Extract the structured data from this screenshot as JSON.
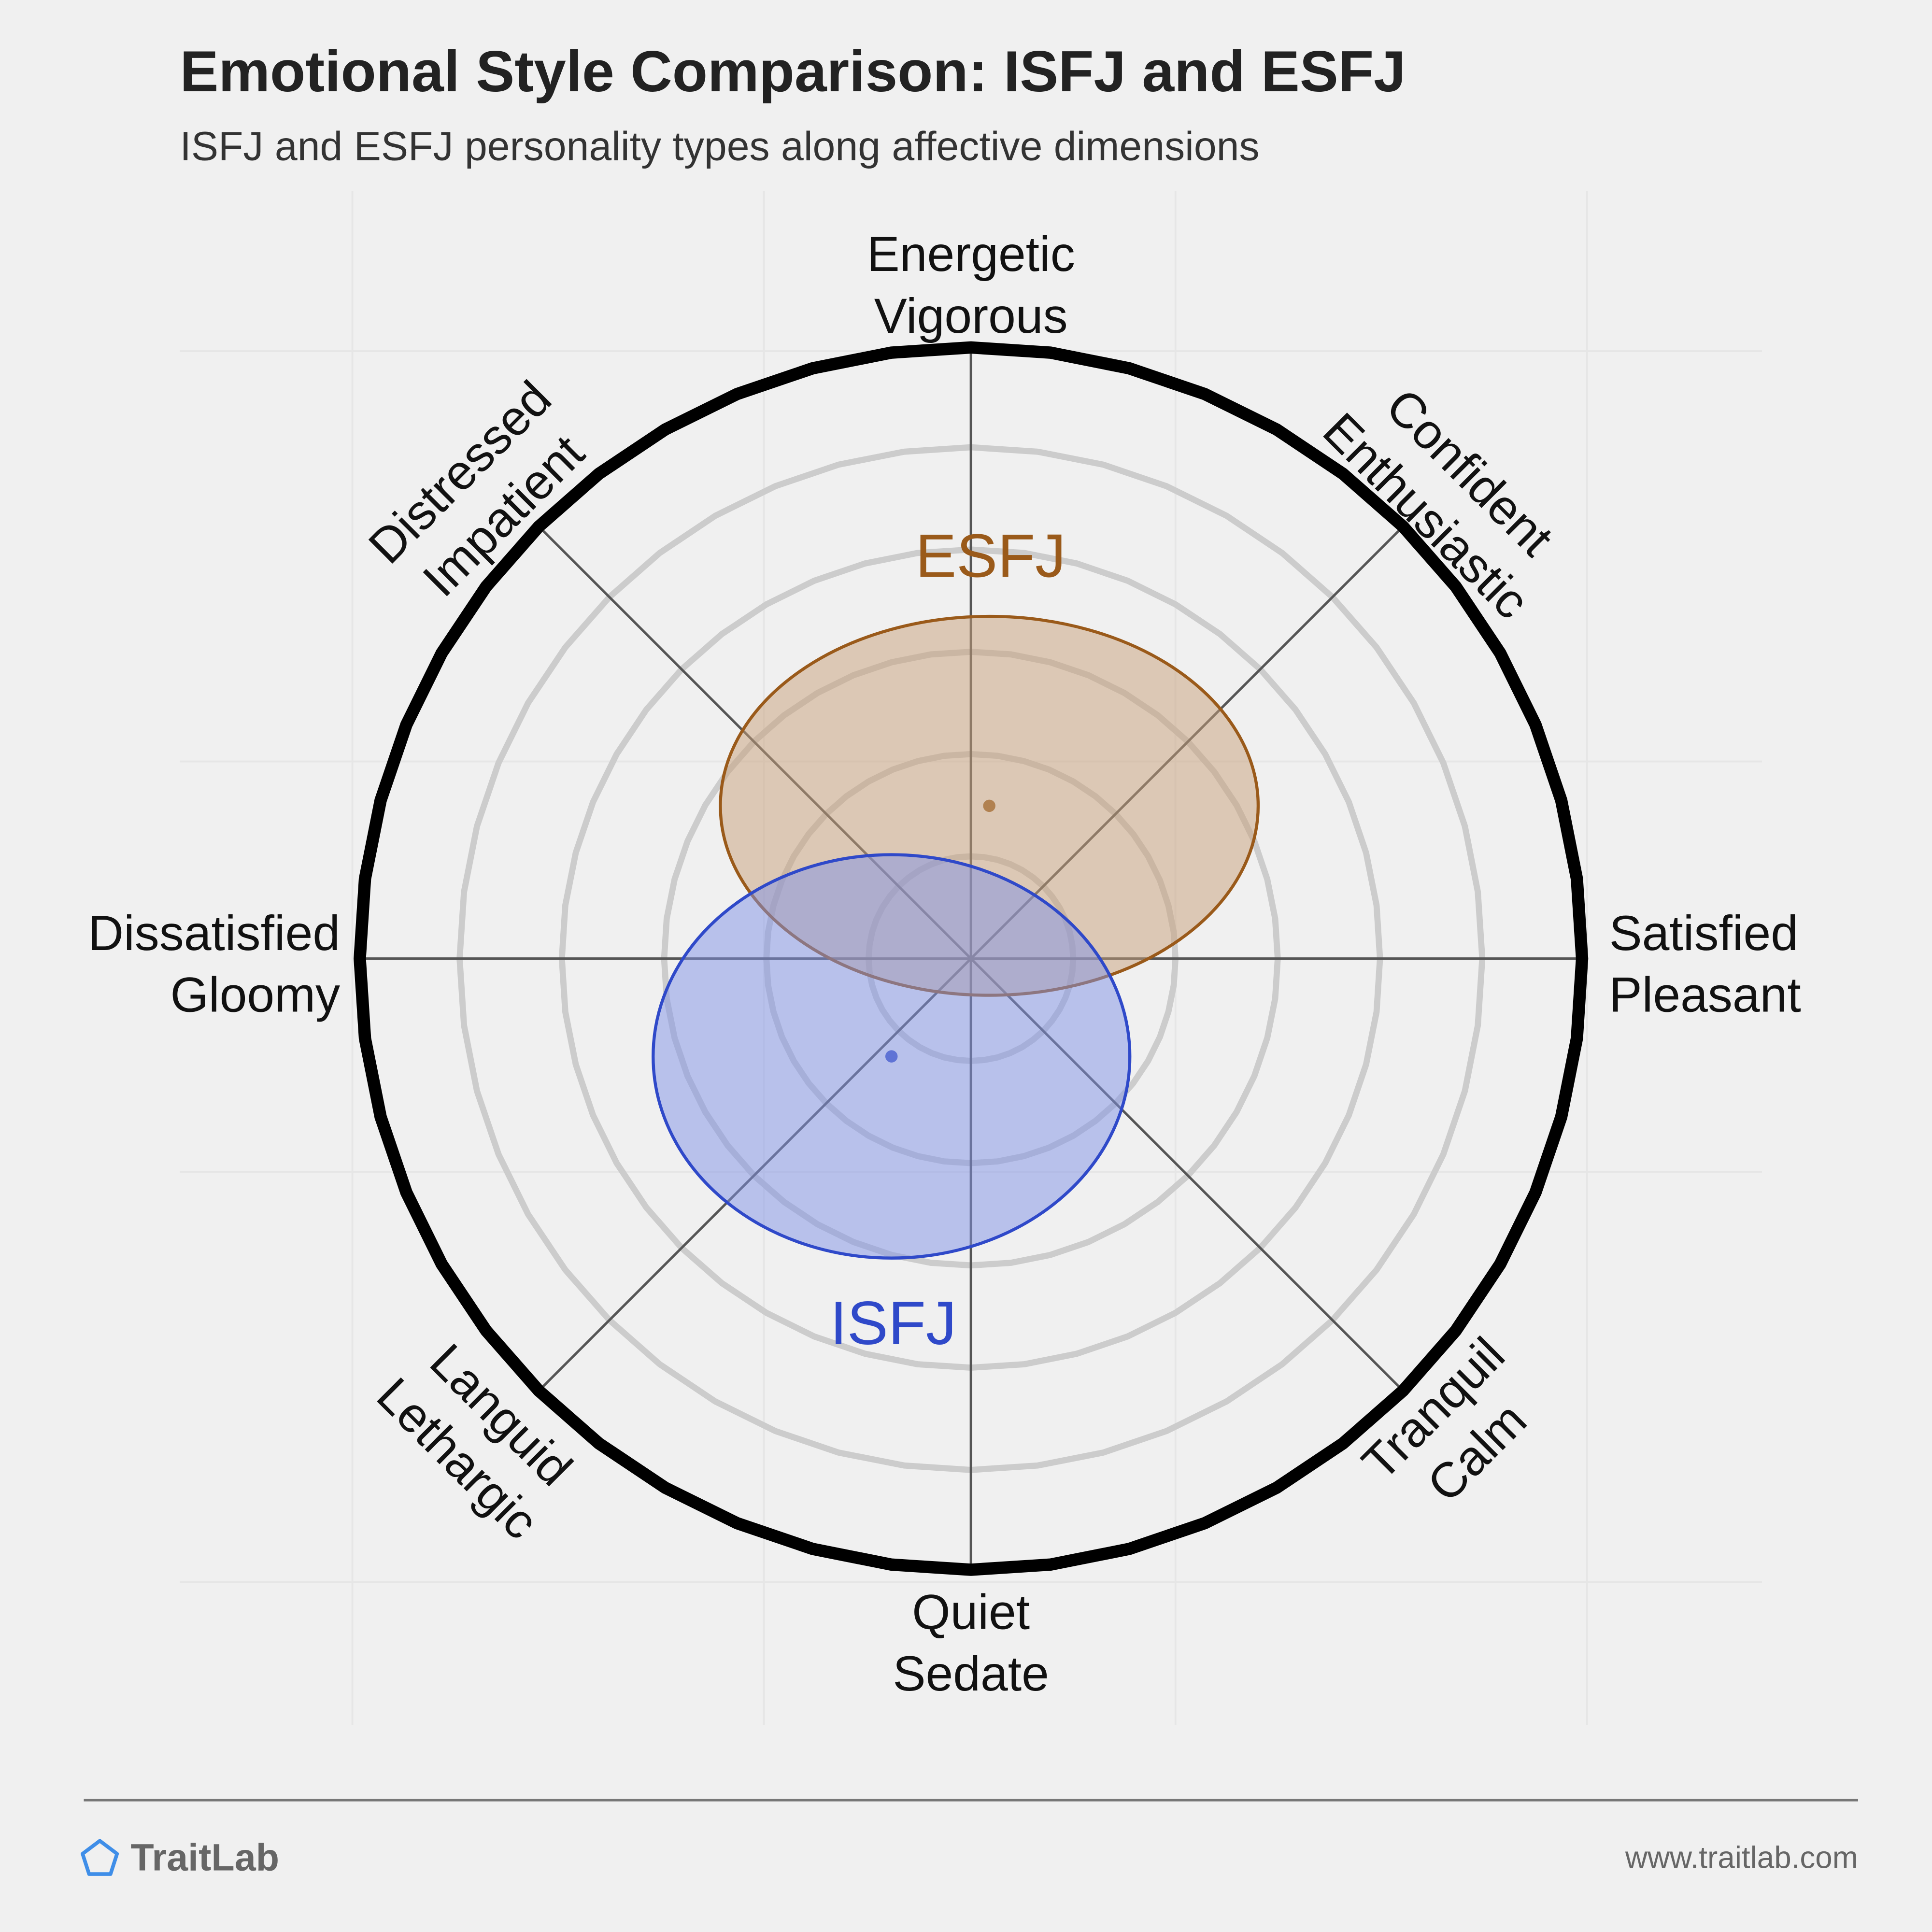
{
  "header": {
    "title": "Emotional Style Comparison: ISFJ and ESFJ",
    "subtitle": "ISFJ and ESFJ personality types along affective dimensions"
  },
  "chart_data": {
    "type": "scatter",
    "title": "Emotional Style Comparison: ISFJ and ESFJ",
    "subtitle": "ISFJ and ESFJ personality types along affective dimensions",
    "grid": true,
    "ring_count": 6,
    "axes": [
      {
        "id": "n",
        "lines": [
          "Energetic",
          "Vigorous"
        ]
      },
      {
        "id": "ne",
        "lines": [
          "Confident",
          "Enthusiastic"
        ]
      },
      {
        "id": "e",
        "lines": [
          "Satisfied",
          "Pleasant"
        ]
      },
      {
        "id": "se",
        "lines": [
          "Tranquil",
          "Calm"
        ]
      },
      {
        "id": "s",
        "lines": [
          "Quiet",
          "Sedate"
        ]
      },
      {
        "id": "sw",
        "lines": [
          "Languid",
          "Lethargic"
        ]
      },
      {
        "id": "w",
        "lines": [
          "Dissatisfied",
          "Gloomy"
        ]
      },
      {
        "id": "nw",
        "lines": [
          "Distressed",
          "Impatient"
        ]
      }
    ],
    "x_range": [
      -1,
      1
    ],
    "y_range": [
      -1,
      1
    ],
    "series": [
      {
        "name": "ESFJ",
        "x": 0.03,
        "y": 0.25,
        "spread_x": 0.44,
        "spread_y": 0.31,
        "color": "#9a5a1a",
        "fill": "#c8a07a"
      },
      {
        "name": "ISFJ",
        "x": -0.13,
        "y": -0.16,
        "spread_x": 0.39,
        "spread_y": 0.33,
        "color": "#2f49c9",
        "fill": "#7f92e6"
      }
    ]
  },
  "footer": {
    "brand": "TraitLab",
    "url": "www.traitlab.com",
    "colors": {
      "brand_icon": "#3f8ee8"
    }
  }
}
